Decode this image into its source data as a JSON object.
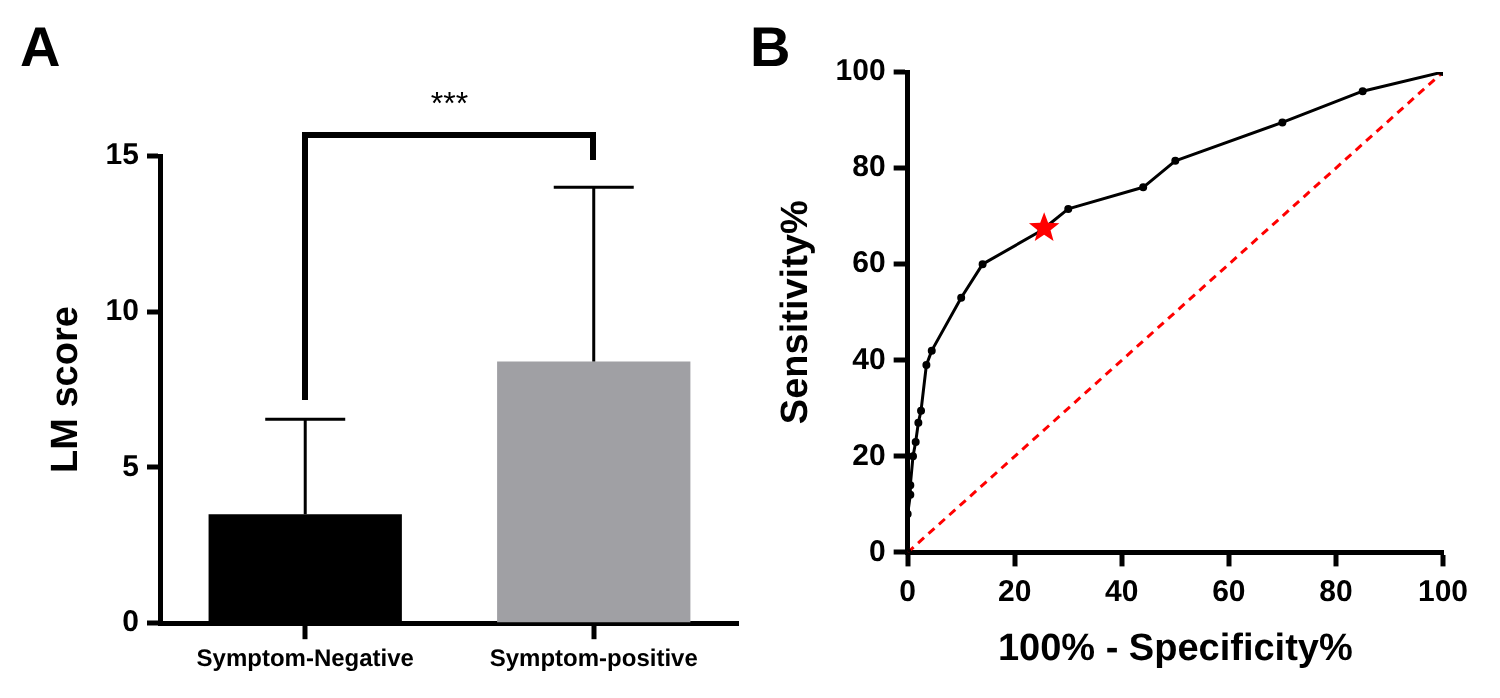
{
  "chart_data": [
    {
      "type": "bar",
      "title": "A",
      "ylabel": "LM score",
      "categories": [
        "Symptom-Negative",
        "Symptom-positive"
      ],
      "values": [
        3.5,
        8.4
      ],
      "colors": [
        "#000000",
        "#a0a0a4"
      ],
      "errors": [
        [
          3.5,
          6.55
        ],
        [
          8.4,
          14.0
        ]
      ],
      "ylim": [
        0,
        15
      ],
      "yticks": [
        0,
        5,
        10,
        15
      ],
      "grid": false,
      "legend": false,
      "annotations": [
        "***"
      ]
    },
    {
      "type": "line",
      "title": "B",
      "xlabel": "100% - Specificity%",
      "ylabel": "Sensitivity%",
      "xlim": [
        0,
        100
      ],
      "xticks": [
        0,
        20,
        40,
        60,
        80,
        100
      ],
      "ylim": [
        0,
        100
      ],
      "yticks": [
        0,
        20,
        40,
        60,
        80,
        100
      ],
      "grid": false,
      "legend": false,
      "series": [
        {
          "color": "#000000",
          "marker": "circle",
          "x": [
            0,
            0,
            0.5,
            0.5,
            1,
            1.5,
            2,
            2.5,
            3.5,
            4.5,
            10,
            14,
            25,
            30,
            44,
            50,
            70,
            85,
            100
          ],
          "values": [
            0,
            8,
            12,
            14,
            20,
            23,
            27,
            29.5,
            39,
            42,
            53,
            60,
            67,
            71.5,
            76,
            81.5,
            89.5,
            96,
            100
          ]
        },
        {
          "type": "scatter",
          "color": "#ff0000",
          "marker": "star",
          "x": [
            25.5
          ],
          "values": [
            67.5
          ]
        },
        {
          "color": "#ff0000",
          "marker": "none",
          "line_style": "dashed",
          "x": [
            0,
            100
          ],
          "values": [
            0,
            100
          ]
        }
      ]
    }
  ]
}
